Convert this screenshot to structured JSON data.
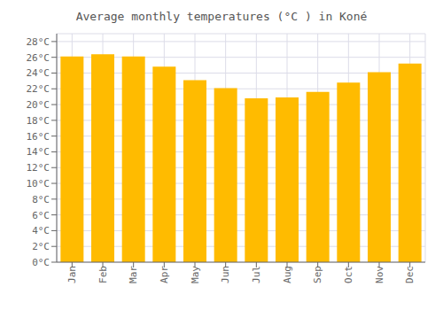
{
  "chart_data": {
    "type": "bar",
    "title": "Average monthly temperatures (°C ) in Koné",
    "categories": [
      "Jan",
      "Feb",
      "Mar",
      "Apr",
      "May",
      "Jun",
      "Jul",
      "Aug",
      "Sep",
      "Oct",
      "Nov",
      "Dec"
    ],
    "values": [
      26.1,
      26.4,
      26.1,
      24.8,
      23.1,
      22.1,
      20.8,
      20.9,
      21.6,
      22.8,
      24.1,
      25.2
    ],
    "color": "#FFBB00",
    "ylim": [
      0,
      29
    ],
    "yticks": [
      {
        "value": 0,
        "label": "0°C"
      },
      {
        "value": 2,
        "label": "2°C"
      },
      {
        "value": 4,
        "label": "4°C"
      },
      {
        "value": 6,
        "label": "6°C"
      },
      {
        "value": 8,
        "label": "8°C"
      },
      {
        "value": 10,
        "label": "10°C"
      },
      {
        "value": 12,
        "label": "12°C"
      },
      {
        "value": 14,
        "label": "14°C"
      },
      {
        "value": 16,
        "label": "16°C"
      },
      {
        "value": 18,
        "label": "18°C"
      },
      {
        "value": 20,
        "label": "20°C"
      },
      {
        "value": 22,
        "label": "22°C"
      },
      {
        "value": 24,
        "label": "24°C"
      },
      {
        "value": 26,
        "label": "26°C"
      },
      {
        "value": 28,
        "label": "28°C"
      }
    ],
    "grid": true
  }
}
